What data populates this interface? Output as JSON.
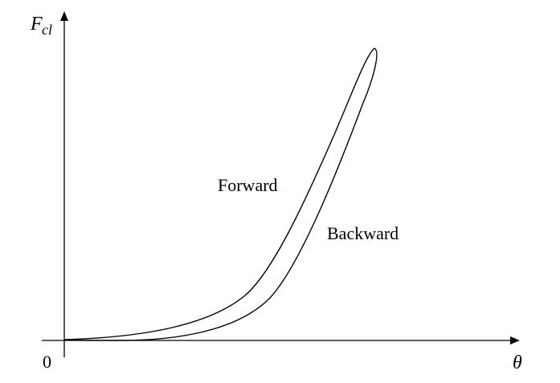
{
  "diagram": {
    "y_axis_label": "F",
    "y_axis_label_subscript": "cl",
    "x_axis_label": "θ",
    "origin_label": "0",
    "curves": [
      {
        "name": "forward-curve",
        "label": "Forward"
      },
      {
        "name": "backward-curve",
        "label": "Backward"
      }
    ],
    "colors": {
      "stroke": "#000000",
      "background": "#ffffff"
    }
  }
}
